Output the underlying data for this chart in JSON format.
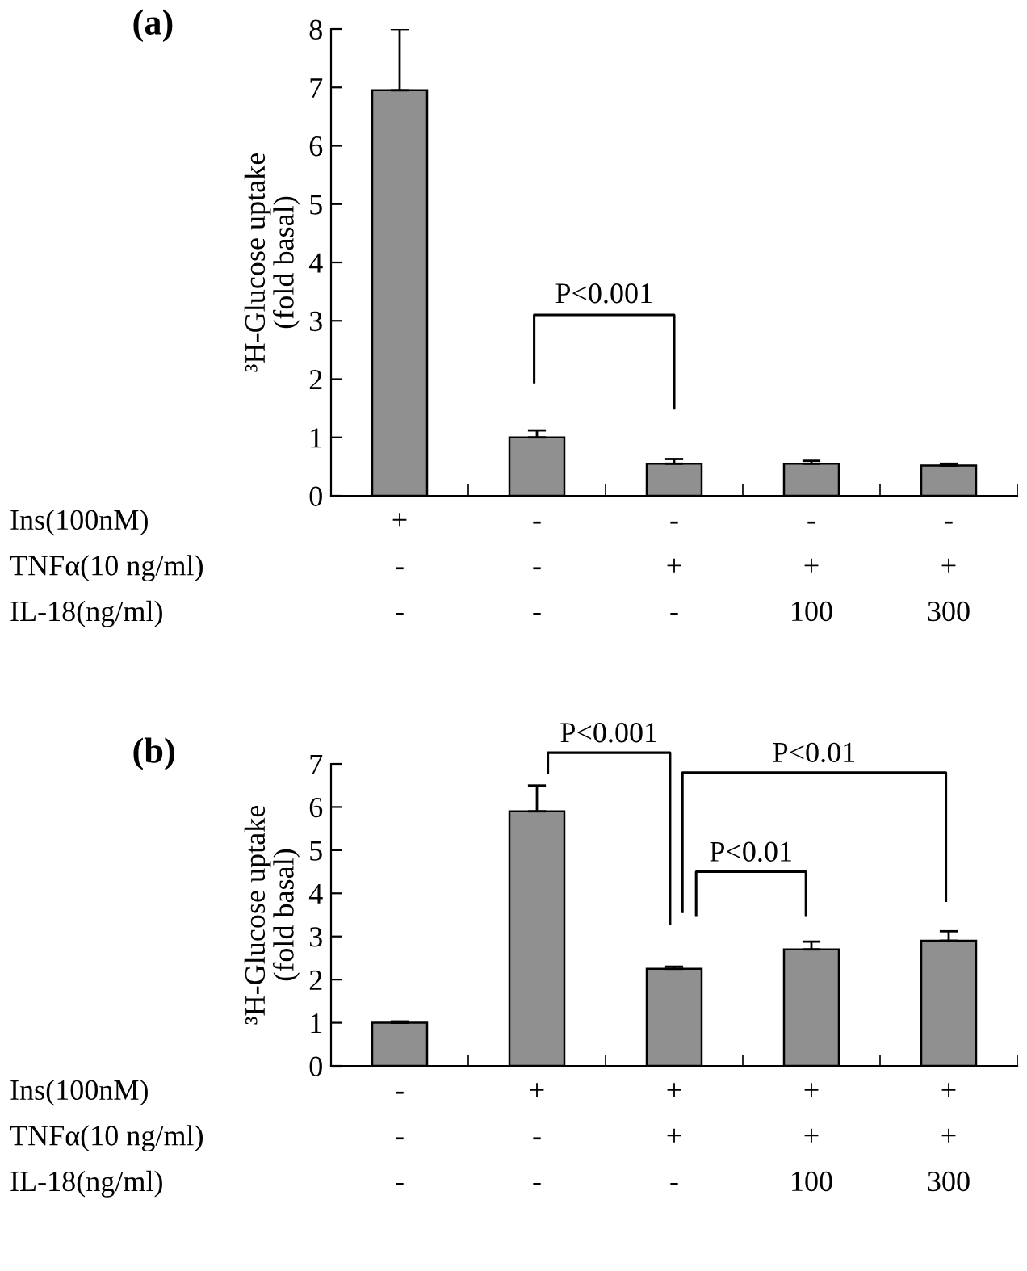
{
  "chart_data": [
    {
      "type": "bar",
      "title": "(a)",
      "ylabel": "³H-Glucose uptake\n(fold basal)",
      "categories": [
        "+\n-\n-",
        "-\n-\n-",
        "-\n+\n-",
        "-\n+\n100",
        "-\n+\n300"
      ],
      "values": [
        6.95,
        1.0,
        0.55,
        0.55,
        0.52
      ],
      "errors": [
        1.05,
        0.12,
        0.08,
        0.05,
        0.03
      ],
      "color": "#909090",
      "ylim": [
        0,
        8
      ],
      "yticks": [
        0,
        1,
        2,
        3,
        4,
        5,
        6,
        7,
        8
      ],
      "grid": false,
      "legend": false,
      "annotations": [
        "Ins(100nM)\nTNFα(10 ng/ml)\nIL-18(ng/ml)",
        "P<0.001"
      ]
    },
    {
      "type": "bar",
      "title": "(b)",
      "ylabel": "³H-Glucose uptake\n(fold basal)",
      "categories": [
        "-\n-\n-",
        "+\n-\n-",
        "+\n+\n-",
        "+\n+\n100",
        "+\n+\n300"
      ],
      "values": [
        1.0,
        5.9,
        2.25,
        2.7,
        2.9
      ],
      "errors": [
        0.03,
        0.6,
        0.05,
        0.18,
        0.22
      ],
      "color": "#909090",
      "ylim": [
        0,
        7
      ],
      "yticks": [
        0,
        1,
        2,
        3,
        4,
        5,
        6,
        7
      ],
      "grid": false,
      "legend": false,
      "annotations": [
        "Ins(100nM)\nTNFα(10 ng/ml)\nIL-18(ng/ml)",
        "P<0.001",
        "P<0.01",
        "P<0.01"
      ]
    }
  ]
}
